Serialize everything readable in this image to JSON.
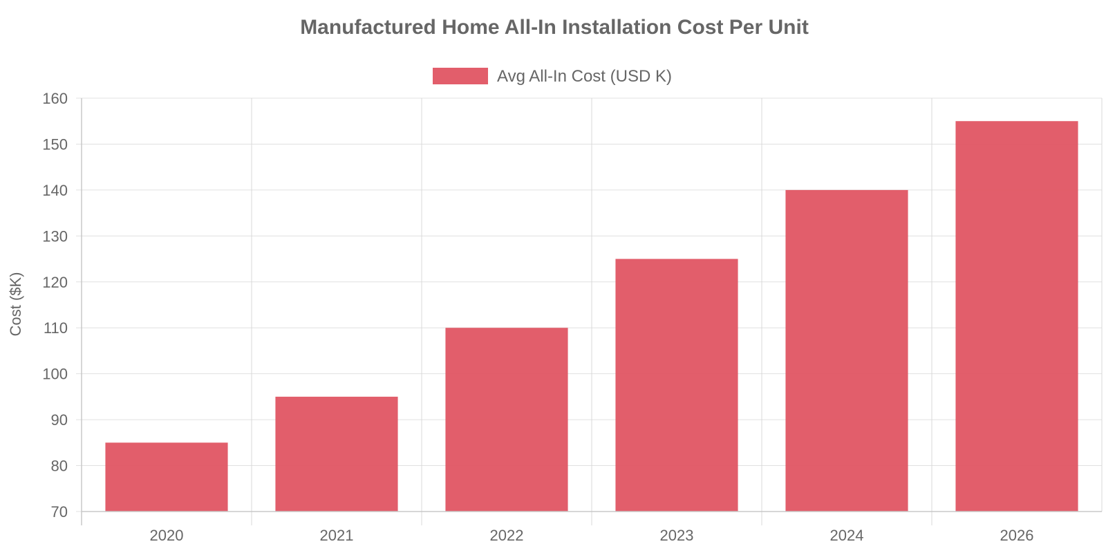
{
  "chart_data": {
    "type": "bar",
    "title": "Manufactured Home All-In Installation Cost Per Unit",
    "categories": [
      "2020",
      "2021",
      "2022",
      "2023",
      "2024",
      "2026"
    ],
    "series": [
      {
        "name": "Avg All-In Cost (USD K)",
        "values": [
          85,
          95,
          110,
          125,
          140,
          155
        ],
        "color": "#e05563"
      }
    ],
    "xlabel": "",
    "ylabel": "Cost ($K)",
    "ylim": [
      70,
      160
    ],
    "yticks": [
      70,
      80,
      90,
      100,
      110,
      120,
      130,
      140,
      150,
      160
    ],
    "grid": true,
    "legend_position": "top-center"
  }
}
